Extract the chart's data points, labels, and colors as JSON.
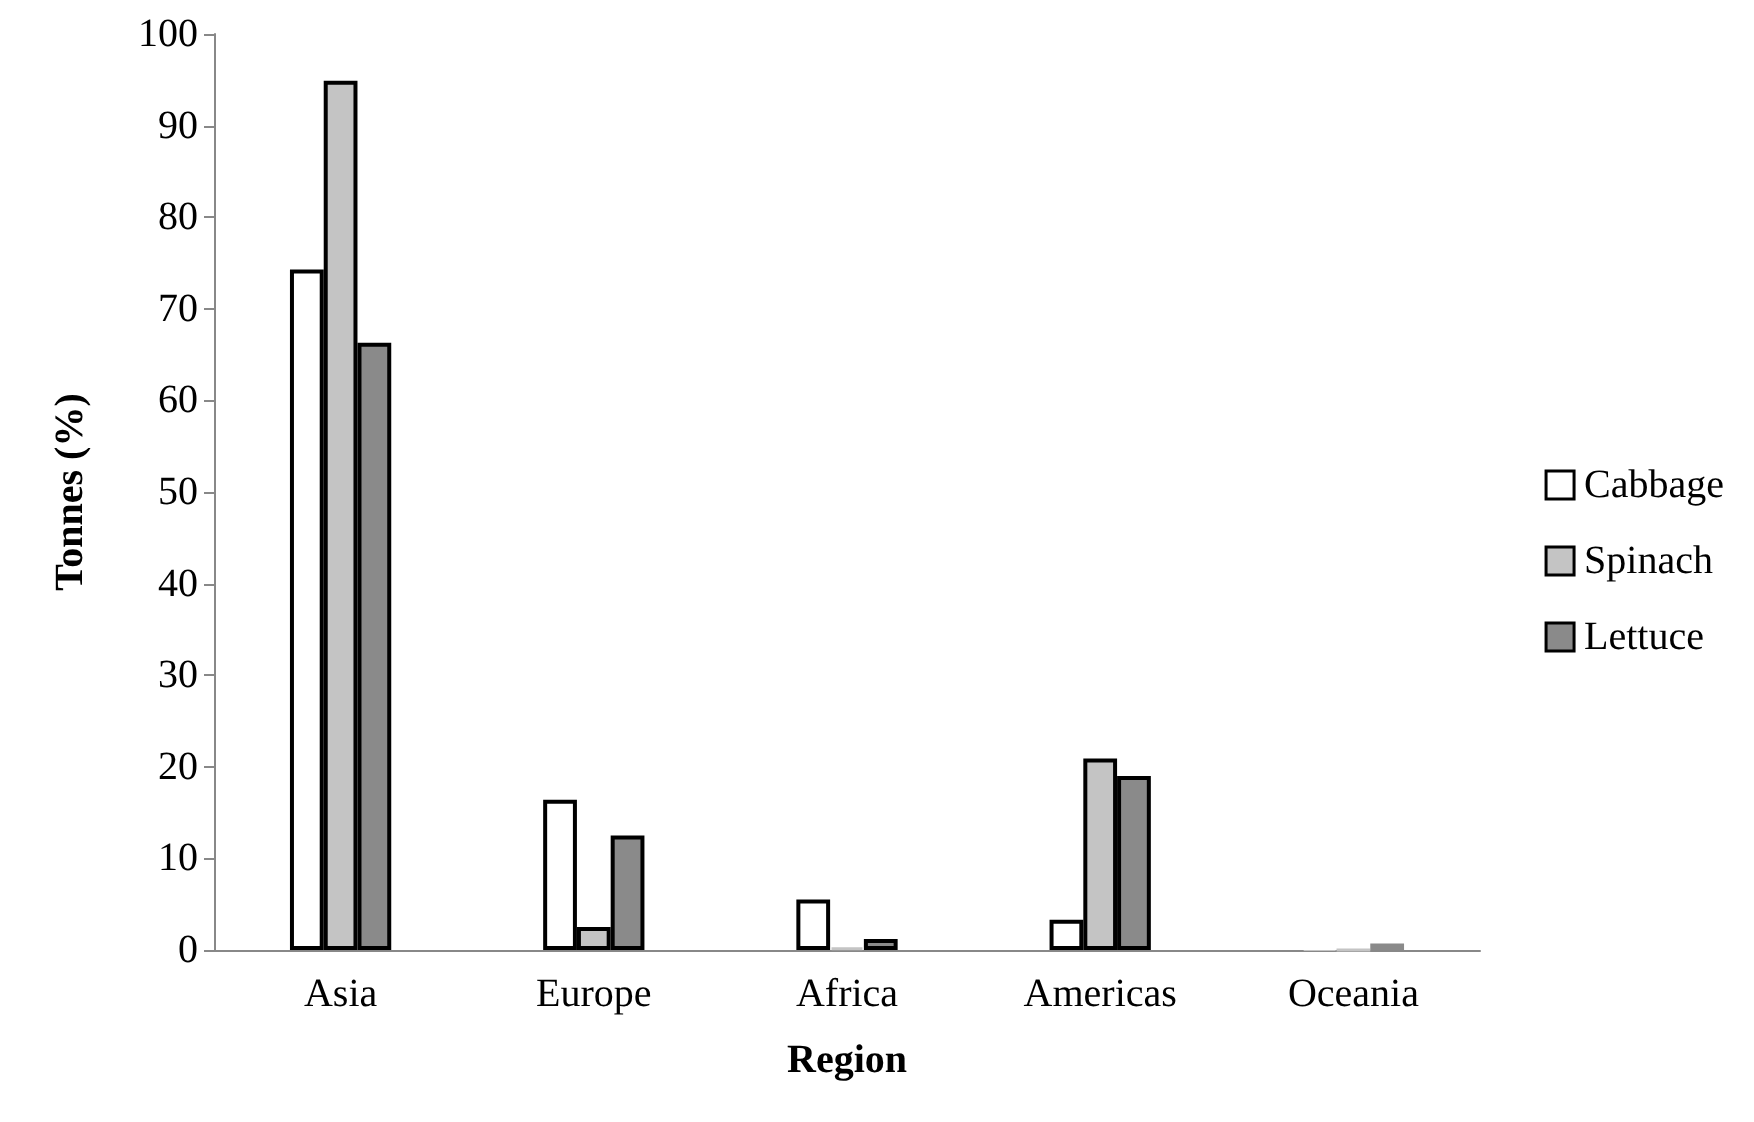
{
  "chart_data": {
    "type": "bar",
    "xlabel": "Region",
    "ylabel": "Tonnes (%)",
    "categories": [
      "Asia",
      "Europe",
      "Africa",
      "Americas",
      "Oceania"
    ],
    "series": [
      {
        "name": "Cabbage",
        "color": "#ffffff",
        "values": [
          74.3,
          16.4,
          5.5,
          3.3,
          0.2
        ]
      },
      {
        "name": "Spinach",
        "color": "#c4c4c4",
        "values": [
          94.9,
          2.5,
          0.3,
          20.9,
          0
        ]
      },
      {
        "name": "Lettuce",
        "color": "#8a8a8a",
        "values": [
          66.3,
          12.5,
          1.2,
          19.0,
          0.7
        ]
      }
    ],
    "ylim": [
      0,
      100
    ],
    "yticks": [
      0,
      10,
      20,
      30,
      40,
      50,
      60,
      70,
      80,
      90,
      100
    ],
    "grid": false,
    "legend": "right"
  }
}
